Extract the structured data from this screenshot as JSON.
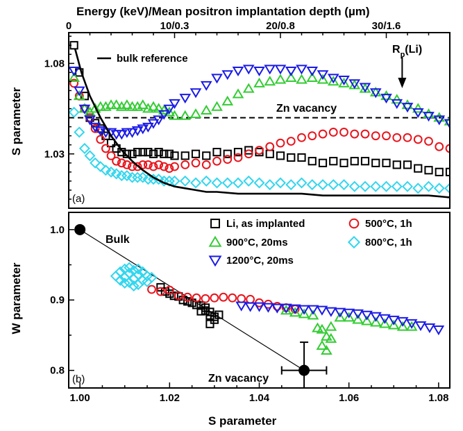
{
  "chart_data": [
    {
      "panel": "(a)",
      "type": "scatter",
      "xlabel_top": "Energy (keV)/Mean positron implantation depth (µm)",
      "ylabel": "S parameter",
      "x_ticks_top": [
        "0",
        "10/0.3",
        "20/0.8",
        "30/1.6"
      ],
      "x_tick_values": [
        0,
        10,
        20,
        30
      ],
      "y_ticks": [
        "1.08",
        "1.03"
      ],
      "y_tick_values": [
        1.08,
        1.03
      ],
      "xlim": [
        0,
        36
      ],
      "ylim": [
        1.0,
        1.097
      ],
      "bulk_reference_label": "bulk reference",
      "bulk_reference": {
        "x": [
          0.6,
          1.2,
          2,
          3,
          4,
          5,
          6,
          7,
          8,
          9,
          10,
          11,
          12,
          13,
          14,
          16,
          18,
          20,
          22,
          24,
          26,
          28,
          30,
          32,
          34,
          36
        ],
        "y": [
          1.088,
          1.075,
          1.062,
          1.05,
          1.04,
          1.032,
          1.026,
          1.021,
          1.017,
          1.014,
          1.012,
          1.011,
          1.01,
          1.009,
          1.009,
          1.008,
          1.008,
          1.008,
          1.008,
          1.007,
          1.007,
          1.007,
          1.007,
          1.007,
          1.007,
          1.006
        ]
      },
      "zn_vacancy_level": {
        "y": 1.05,
        "label": "Zn vacancy"
      },
      "rp_marker": {
        "x": 31.5,
        "label_main": "R",
        "label_sub": "p",
        "label_tail": "(Li)"
      },
      "series": [
        {
          "name": "Li, as implanted",
          "marker": "square",
          "color": "#000000",
          "x": [
            0.5,
            1,
            1.5,
            2,
            2.5,
            3,
            3.5,
            4,
            4.5,
            5,
            5.5,
            6,
            6.5,
            7,
            7.5,
            8,
            8.5,
            9,
            9.5,
            10,
            11,
            12,
            13,
            14,
            15,
            16,
            17,
            18,
            19,
            20,
            21,
            22,
            23,
            24,
            25,
            26,
            27,
            28,
            29,
            30,
            31,
            32,
            33,
            34,
            35,
            36
          ],
          "y": [
            1.09,
            1.075,
            1.062,
            1.05,
            1.047,
            1.044,
            1.04,
            1.036,
            1.033,
            1.031,
            1.03,
            1.03,
            1.031,
            1.031,
            1.031,
            1.03,
            1.031,
            1.03,
            1.03,
            1.029,
            1.029,
            1.03,
            1.029,
            1.031,
            1.03,
            1.031,
            1.032,
            1.031,
            1.03,
            1.029,
            1.028,
            1.028,
            1.026,
            1.025,
            1.026,
            1.025,
            1.026,
            1.026,
            1.025,
            1.025,
            1.024,
            1.024,
            1.022,
            1.021,
            1.02,
            1.02
          ]
        },
        {
          "name": "500°C, 1h",
          "marker": "circle",
          "color": "#e8141c",
          "x": [
            0.5,
            1,
            1.5,
            2,
            2.5,
            3,
            3.5,
            4,
            4.5,
            5,
            5.5,
            6,
            6.5,
            7,
            7.5,
            8,
            8.5,
            9,
            9.5,
            10,
            11,
            12,
            13,
            14,
            15,
            16,
            17,
            18,
            19,
            20,
            21,
            22,
            23,
            24,
            25,
            26,
            27,
            28,
            29,
            30,
            31,
            32,
            33,
            34,
            35,
            36
          ],
          "y": [
            1.069,
            1.062,
            1.055,
            1.05,
            1.044,
            1.038,
            1.033,
            1.029,
            1.026,
            1.025,
            1.024,
            1.023,
            1.023,
            1.024,
            1.024,
            1.023,
            1.024,
            1.023,
            1.022,
            1.023,
            1.024,
            1.025,
            1.024,
            1.026,
            1.027,
            1.028,
            1.03,
            1.032,
            1.034,
            1.036,
            1.037,
            1.039,
            1.04,
            1.041,
            1.042,
            1.042,
            1.041,
            1.041,
            1.04,
            1.04,
            1.039,
            1.039,
            1.038,
            1.037,
            1.034,
            1.033
          ]
        },
        {
          "name": "900°C,  20ms",
          "marker": "triangle-up",
          "color": "#33cc33",
          "x": [
            0.5,
            1,
            1.5,
            2,
            2.5,
            3,
            3.5,
            4,
            4.5,
            5,
            5.5,
            6,
            6.5,
            7,
            7.5,
            8,
            8.5,
            9,
            9.5,
            10,
            11,
            12,
            13,
            14,
            15,
            16,
            17,
            18,
            19,
            20,
            21,
            22,
            23,
            24,
            25,
            26,
            27,
            28,
            29,
            30,
            31,
            32,
            33,
            34,
            35,
            36
          ],
          "y": [
            1.072,
            1.062,
            1.055,
            1.053,
            1.055,
            1.056,
            1.056,
            1.057,
            1.057,
            1.056,
            1.057,
            1.056,
            1.056,
            1.057,
            1.055,
            1.056,
            1.055,
            1.054,
            1.053,
            1.051,
            1.051,
            1.052,
            1.054,
            1.056,
            1.059,
            1.063,
            1.066,
            1.069,
            1.07,
            1.071,
            1.072,
            1.071,
            1.072,
            1.071,
            1.07,
            1.069,
            1.068,
            1.066,
            1.064,
            1.062,
            1.06,
            1.057,
            1.055,
            1.052,
            1.05,
            1.048
          ]
        },
        {
          "name": "1200°C, 20ms",
          "marker": "triangle-down",
          "color": "#1a1ae6",
          "x": [
            0.5,
            1,
            1.5,
            2,
            2.5,
            3,
            3.5,
            4,
            4.5,
            5,
            5.5,
            6,
            6.5,
            7,
            7.5,
            8,
            8.5,
            9,
            9.5,
            10,
            11,
            12,
            13,
            14,
            15,
            16,
            17,
            18,
            19,
            20,
            21,
            22,
            23,
            24,
            25,
            26,
            27,
            28,
            29,
            30,
            31,
            32,
            33,
            34,
            35,
            36
          ],
          "y": [
            1.076,
            1.065,
            1.055,
            1.049,
            1.045,
            1.043,
            1.042,
            1.042,
            1.041,
            1.041,
            1.042,
            1.042,
            1.043,
            1.044,
            1.045,
            1.047,
            1.049,
            1.052,
            1.055,
            1.058,
            1.061,
            1.064,
            1.068,
            1.072,
            1.074,
            1.076,
            1.077,
            1.076,
            1.077,
            1.077,
            1.076,
            1.077,
            1.076,
            1.074,
            1.072,
            1.071,
            1.069,
            1.067,
            1.064,
            1.061,
            1.058,
            1.056,
            1.053,
            1.051,
            1.049,
            1.047
          ]
        },
        {
          "name": "800°C, 1h",
          "marker": "diamond",
          "color": "#33d6ee",
          "x": [
            0.5,
            1,
            1.5,
            2,
            2.5,
            3,
            3.5,
            4,
            4.5,
            5,
            5.5,
            6,
            6.5,
            7,
            7.5,
            8,
            8.5,
            9,
            9.5,
            10,
            11,
            12,
            13,
            14,
            15,
            16,
            17,
            18,
            19,
            20,
            21,
            22,
            23,
            24,
            25,
            26,
            27,
            28,
            29,
            30,
            31,
            32,
            33,
            34,
            35,
            36
          ],
          "y": [
            1.053,
            1.042,
            1.033,
            1.029,
            1.025,
            1.023,
            1.021,
            1.02,
            1.019,
            1.018,
            1.018,
            1.017,
            1.017,
            1.017,
            1.016,
            1.016,
            1.016,
            1.015,
            1.015,
            1.015,
            1.015,
            1.014,
            1.015,
            1.014,
            1.014,
            1.014,
            1.015,
            1.014,
            1.013,
            1.014,
            1.013,
            1.014,
            1.013,
            1.013,
            1.013,
            1.013,
            1.012,
            1.012,
            1.012,
            1.012,
            1.012,
            1.012,
            1.011,
            1.012,
            1.011,
            1.011
          ]
        }
      ]
    },
    {
      "panel": "(b)",
      "type": "scatter",
      "xlabel": "S parameter",
      "ylabel": "W parameter",
      "x_ticks": [
        "1.00",
        "1.02",
        "1.04",
        "1.06",
        "1.08"
      ],
      "x_tick_values": [
        1.0,
        1.02,
        1.04,
        1.06,
        1.08
      ],
      "y_ticks": [
        "1.0",
        "0.9",
        "0.8"
      ],
      "y_tick_values": [
        1.0,
        0.9,
        0.8
      ],
      "xlim": [
        0.9975,
        1.0825
      ],
      "ylim": [
        0.775,
        1.0245
      ],
      "bulk_point": {
        "x": 1.0,
        "y": 1.0,
        "label": "Bulk"
      },
      "zn_vacancy_point": {
        "x": 1.05,
        "y": 0.8,
        "label": "Zn vacancy",
        "x_err": 0.005,
        "y_err": 0.04
      },
      "legend": [
        {
          "label": "Li, as implanted",
          "marker": "square",
          "color": "#000000"
        },
        {
          "label": "500°C, 1h",
          "marker": "circle",
          "color": "#e8141c"
        },
        {
          "label": "900°C,  20ms",
          "marker": "triangle-up",
          "color": "#33cc33"
        },
        {
          "label": "800°C, 1h",
          "marker": "diamond",
          "color": "#33d6ee"
        },
        {
          "label": "1200°C, 20ms",
          "marker": "triangle-down",
          "color": "#1a1ae6"
        }
      ],
      "series": [
        {
          "name": "800°C, 1h",
          "marker": "diamond",
          "color": "#33d6ee",
          "x": [
            1.008,
            1.009,
            1.009,
            1.01,
            1.01,
            1.011,
            1.011,
            1.012,
            1.012,
            1.013,
            1.013,
            1.014,
            1.014,
            1.015,
            1.015,
            1.016,
            1.011,
            1.012,
            1.013,
            1.01
          ],
          "y": [
            0.934,
            0.94,
            0.928,
            0.944,
            0.932,
            0.938,
            0.925,
            0.942,
            0.93,
            0.936,
            0.922,
            0.94,
            0.928,
            0.934,
            0.926,
            0.932,
            0.946,
            0.92,
            0.944,
            0.924
          ]
        },
        {
          "name": "Li, as implanted",
          "marker": "square",
          "color": "#000000",
          "x": [
            1.018,
            1.019,
            1.02,
            1.021,
            1.022,
            1.023,
            1.024,
            1.025,
            1.026,
            1.027,
            1.028,
            1.028,
            1.029,
            1.029,
            1.03,
            1.03,
            1.031,
            1.027,
            1.029
          ],
          "y": [
            0.918,
            0.912,
            0.909,
            0.906,
            0.905,
            0.9,
            0.898,
            0.896,
            0.893,
            0.892,
            0.889,
            0.885,
            0.883,
            0.878,
            0.876,
            0.872,
            0.879,
            0.884,
            0.866
          ]
        },
        {
          "name": "500°C, 1h",
          "marker": "circle",
          "color": "#e8141c",
          "x": [
            1.016,
            1.018,
            1.02,
            1.022,
            1.024,
            1.026,
            1.028,
            1.03,
            1.032,
            1.034,
            1.036,
            1.038,
            1.04,
            1.042,
            1.044,
            1.046,
            1.048
          ],
          "y": [
            0.915,
            0.912,
            0.914,
            0.906,
            0.904,
            0.903,
            0.902,
            0.903,
            0.904,
            0.903,
            0.902,
            0.901,
            0.896,
            0.894,
            0.891,
            0.889,
            0.887
          ]
        },
        {
          "name": "900°C,  20ms",
          "marker": "triangle-up",
          "color": "#33cc33",
          "x": [
            1.046,
            1.048,
            1.05,
            1.052,
            1.053,
            1.054,
            1.054,
            1.055,
            1.055,
            1.056,
            1.056,
            1.058,
            1.06,
            1.062,
            1.064,
            1.066,
            1.068,
            1.07,
            1.072,
            1.074
          ],
          "y": [
            0.885,
            0.882,
            0.88,
            0.878,
            0.86,
            0.858,
            0.835,
            0.848,
            0.828,
            0.862,
            0.845,
            0.875,
            0.875,
            0.872,
            0.87,
            0.868,
            0.866,
            0.864,
            0.862,
            0.862
          ]
        },
        {
          "name": "1200°C, 20ms",
          "marker": "triangle-down",
          "color": "#1a1ae6",
          "x": [
            1.036,
            1.038,
            1.04,
            1.042,
            1.044,
            1.046,
            1.048,
            1.05,
            1.052,
            1.054,
            1.056,
            1.058,
            1.06,
            1.062,
            1.064,
            1.066,
            1.068,
            1.07,
            1.072,
            1.074,
            1.076,
            1.078,
            1.08
          ],
          "y": [
            0.892,
            0.891,
            0.891,
            0.89,
            0.889,
            0.889,
            0.888,
            0.887,
            0.887,
            0.886,
            0.884,
            0.883,
            0.882,
            0.881,
            0.879,
            0.877,
            0.874,
            0.872,
            0.87,
            0.867,
            0.864,
            0.861,
            0.858
          ]
        }
      ]
    }
  ]
}
